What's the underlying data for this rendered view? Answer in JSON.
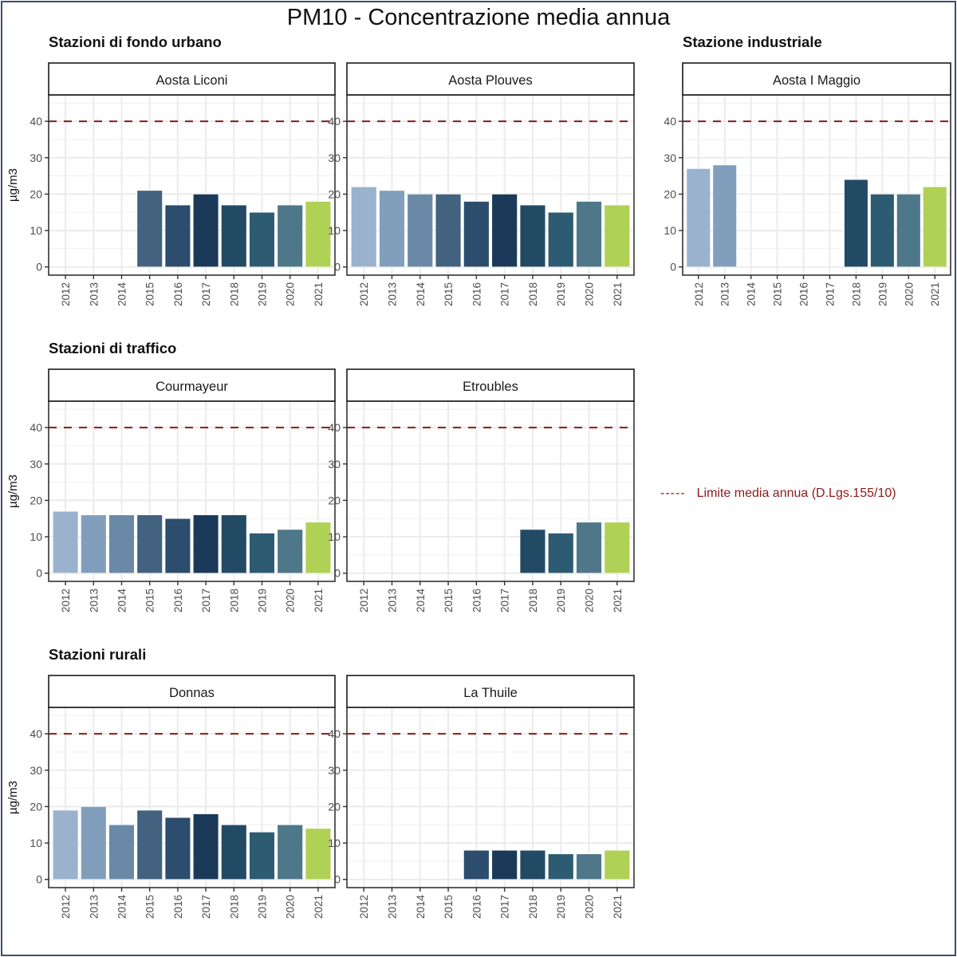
{
  "title": "PM10 - Concentrazione media annua",
  "legend": {
    "dash_symbol": "-----",
    "label": "Limite media annua (D.Lgs.155/10)",
    "color": "#8b1a1a"
  },
  "sections": [
    {
      "id": "urban",
      "title": "Stazioni di fondo urbano"
    },
    {
      "id": "industrial",
      "title": "Stazione industriale"
    },
    {
      "id": "traffic",
      "title": "Stazioni di traffico"
    },
    {
      "id": "rural",
      "title": "Stazioni rurali"
    }
  ],
  "year_colors": {
    "2012": "#9ab2cd",
    "2013": "#819fbc",
    "2014": "#6a89a7",
    "2015": "#42627f",
    "2016": "#2c4d6d",
    "2017": "#1b3a5a",
    "2018": "#234a65",
    "2019": "#2c5b72",
    "2020": "#4e7789",
    "2021": "#afd155"
  },
  "chart_data": [
    {
      "type": "bar",
      "section": "Stazioni di fondo urbano",
      "title": "Aosta Liconi",
      "ylabel": "µg/m3",
      "categories": [
        "2012",
        "2013",
        "2014",
        "2015",
        "2016",
        "2017",
        "2018",
        "2019",
        "2020",
        "2021"
      ],
      "values": [
        null,
        null,
        null,
        21,
        17,
        20,
        17,
        15,
        17,
        18
      ],
      "yticks": [
        0,
        10,
        20,
        30,
        40
      ],
      "ylim": [
        0,
        45
      ],
      "reference_line": {
        "y": 40,
        "style": "dashed",
        "color": "#8b1a1a",
        "label": "Limite media annua (D.Lgs.155/10)"
      },
      "grid": true,
      "show_ylabel": true
    },
    {
      "type": "bar",
      "section": "Stazioni di fondo urbano",
      "title": "Aosta Plouves",
      "ylabel": "",
      "categories": [
        "2012",
        "2013",
        "2014",
        "2015",
        "2016",
        "2017",
        "2018",
        "2019",
        "2020",
        "2021"
      ],
      "values": [
        22,
        21,
        20,
        20,
        18,
        20,
        17,
        15,
        18,
        17
      ],
      "yticks": [
        0,
        10,
        20,
        30,
        40
      ],
      "ylim": [
        0,
        45
      ],
      "reference_line": {
        "y": 40,
        "style": "dashed",
        "color": "#8b1a1a"
      },
      "grid": true,
      "show_ylabel": false
    },
    {
      "type": "bar",
      "section": "Stazione industriale",
      "title": "Aosta I Maggio",
      "ylabel": "",
      "categories": [
        "2012",
        "2013",
        "2014",
        "2015",
        "2016",
        "2017",
        "2018",
        "2019",
        "2020",
        "2021"
      ],
      "values": [
        27,
        28,
        null,
        null,
        null,
        null,
        24,
        20,
        20,
        22
      ],
      "yticks": [
        0,
        10,
        20,
        30,
        40
      ],
      "ylim": [
        0,
        45
      ],
      "reference_line": {
        "y": 40,
        "style": "dashed",
        "color": "#8b1a1a"
      },
      "grid": true,
      "show_ylabel": false
    },
    {
      "type": "bar",
      "section": "Stazioni di traffico",
      "title": "Courmayeur",
      "ylabel": "µg/m3",
      "categories": [
        "2012",
        "2013",
        "2014",
        "2015",
        "2016",
        "2017",
        "2018",
        "2019",
        "2020",
        "2021"
      ],
      "values": [
        17,
        16,
        16,
        16,
        15,
        16,
        16,
        11,
        12,
        14
      ],
      "yticks": [
        0,
        10,
        20,
        30,
        40
      ],
      "ylim": [
        0,
        45
      ],
      "reference_line": {
        "y": 40,
        "style": "dashed",
        "color": "#8b1a1a"
      },
      "grid": true,
      "show_ylabel": true
    },
    {
      "type": "bar",
      "section": "Stazioni di traffico",
      "title": "Etroubles",
      "ylabel": "",
      "categories": [
        "2012",
        "2013",
        "2014",
        "2015",
        "2016",
        "2017",
        "2018",
        "2019",
        "2020",
        "2021"
      ],
      "values": [
        null,
        null,
        null,
        null,
        null,
        null,
        12,
        11,
        14,
        14
      ],
      "yticks": [
        0,
        10,
        20,
        30,
        40
      ],
      "ylim": [
        0,
        45
      ],
      "reference_line": {
        "y": 40,
        "style": "dashed",
        "color": "#8b1a1a"
      },
      "grid": true,
      "show_ylabel": false
    },
    {
      "type": "bar",
      "section": "Stazioni rurali",
      "title": "Donnas",
      "ylabel": "µg/m3",
      "categories": [
        "2012",
        "2013",
        "2014",
        "2015",
        "2016",
        "2017",
        "2018",
        "2019",
        "2020",
        "2021"
      ],
      "values": [
        19,
        20,
        15,
        19,
        17,
        18,
        15,
        13,
        15,
        14
      ],
      "yticks": [
        0,
        10,
        20,
        30,
        40
      ],
      "ylim": [
        0,
        45
      ],
      "reference_line": {
        "y": 40,
        "style": "dashed",
        "color": "#8b1a1a"
      },
      "grid": true,
      "show_ylabel": true
    },
    {
      "type": "bar",
      "section": "Stazioni rurali",
      "title": "La Thuile",
      "ylabel": "",
      "categories": [
        "2012",
        "2013",
        "2014",
        "2015",
        "2016",
        "2017",
        "2018",
        "2019",
        "2020",
        "2021"
      ],
      "values": [
        null,
        null,
        null,
        null,
        8,
        8,
        8,
        7,
        7,
        8
      ],
      "yticks": [
        0,
        10,
        20,
        30,
        40
      ],
      "ylim": [
        0,
        45
      ],
      "reference_line": {
        "y": 40,
        "style": "dashed",
        "color": "#8b1a1a"
      },
      "grid": true,
      "show_ylabel": false
    }
  ]
}
